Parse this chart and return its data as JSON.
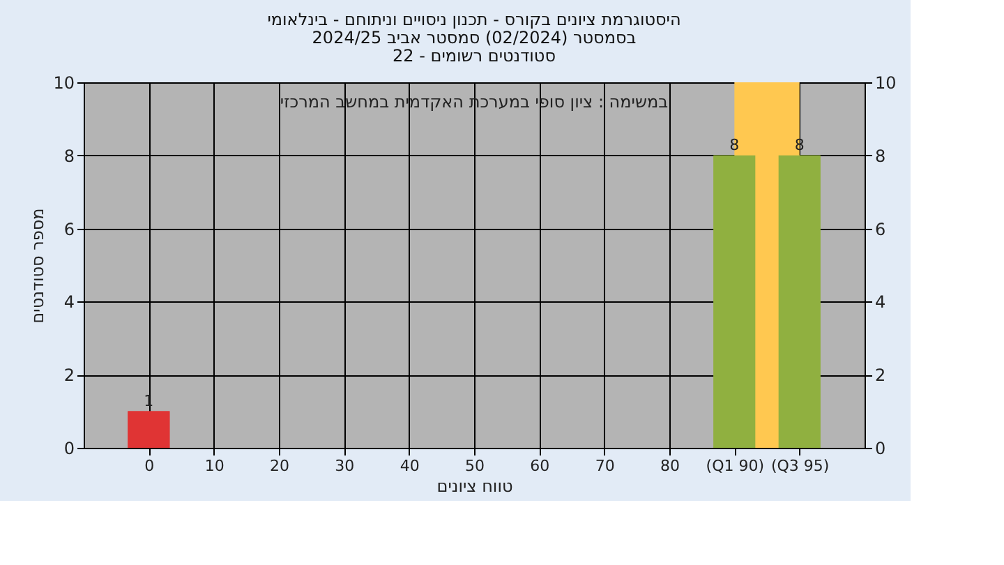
{
  "chart_data": {
    "type": "bar",
    "title": [
      "היסטוגרמת ציונים בקורס - תכנון ניסויים וניתוחם - בינלאומי",
      "בסמסטר (02/2024) סמסטר אביב 2024/25",
      "סטודנטים רשומים - 22"
    ],
    "xlabel": "טווח ציונים",
    "ylabel": "מספר סטודנטים",
    "annotations": [
      "במשימה : ציון סופי במערכת האקדמית במחשב המרכזי"
    ],
    "categories": [
      "0",
      "10",
      "20",
      "30",
      "40",
      "50",
      "60",
      "70",
      "80",
      "(Q1 90)",
      "(Q3 95)"
    ],
    "values": [
      1,
      0,
      0,
      0,
      0,
      0,
      0,
      0,
      0,
      8,
      8
    ],
    "colors": [
      "#e03434",
      "#90b040",
      "#90b040",
      "#90b040",
      "#90b040",
      "#90b040",
      "#90b040",
      "#90b040",
      "#90b040",
      "#90b040",
      "#90b040"
    ],
    "value_labels": [
      "1",
      null,
      null,
      null,
      null,
      null,
      null,
      null,
      null,
      "8",
      "8"
    ],
    "bands": [
      {
        "axis": "x",
        "from": "(Q1 90)",
        "to": "(Q3 95)",
        "color": "#ffc850"
      }
    ],
    "ylim": [
      0,
      10
    ],
    "yticks": [
      0,
      2,
      4,
      6,
      8,
      10
    ],
    "y2lim": [
      0,
      10
    ],
    "y2ticks": [
      0,
      2,
      4,
      6,
      8,
      10
    ],
    "grid": true
  }
}
